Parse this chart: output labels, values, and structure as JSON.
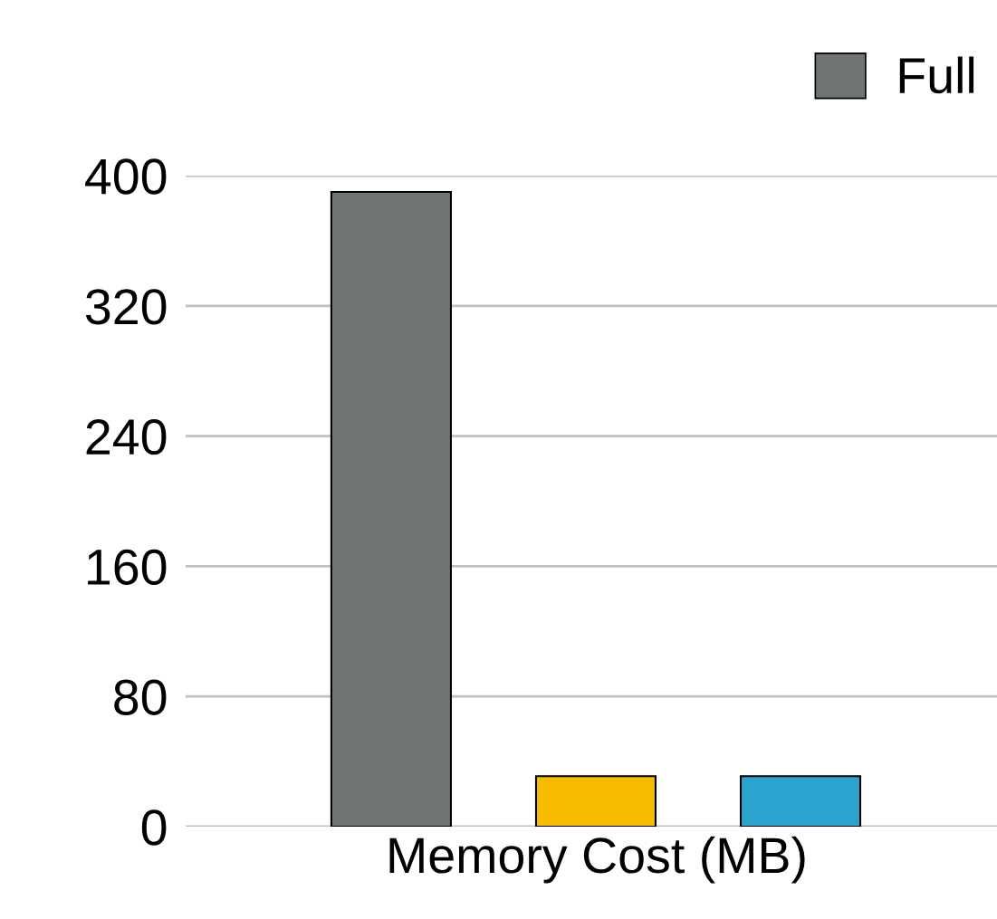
{
  "chart_data": {
    "type": "bar",
    "categories": [
      null,
      null,
      null
    ],
    "xlabel": "Memory Cost (MB)",
    "series": [
      {
        "name": "Full",
        "color": "#6f7570",
        "values": [
          390,
          null,
          null
        ]
      },
      {
        "color": "#f7bb00",
        "values": [
          null,
          31,
          null
        ]
      },
      {
        "color": "#2ba3ce",
        "values": [
          null,
          null,
          31
        ]
      }
    ],
    "ylim": [
      0,
      400
    ],
    "yticks": [
      0,
      80,
      160,
      240,
      320,
      400
    ],
    "grid": "y",
    "legend": "top right"
  }
}
